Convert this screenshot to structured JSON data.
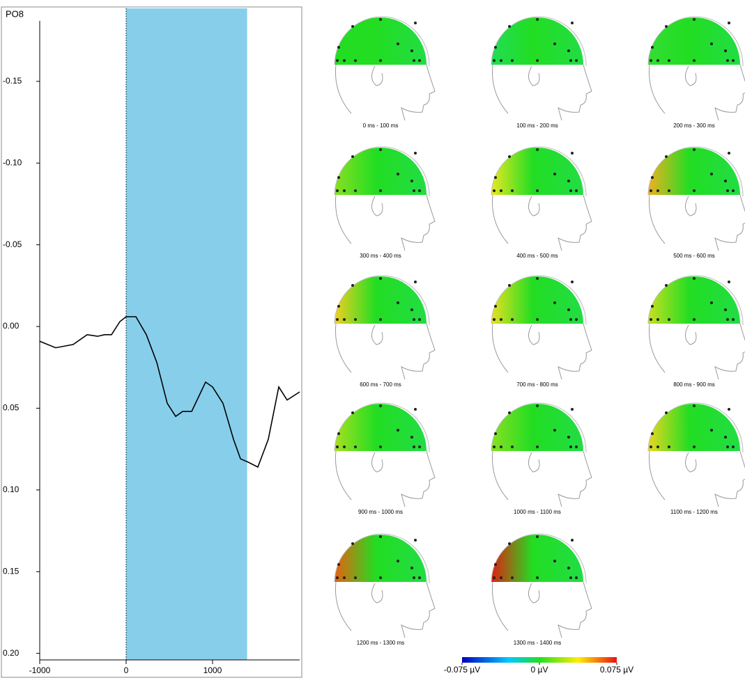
{
  "chart_data": {
    "type": "line",
    "title": "PO8",
    "x": [
      -1000,
      -815,
      -613,
      -452,
      -331,
      -250,
      -169,
      -73,
      0,
      113,
      234,
      355,
      476,
      573,
      653,
      758,
      839,
      919,
      1000,
      1121,
      1242,
      1323,
      1411,
      1524,
      1645,
      1766,
      1863,
      2008
    ],
    "values": [
      0.009,
      0.013,
      0.011,
      0.005,
      0.006,
      0.005,
      0.005,
      -0.003,
      -0.006,
      -0.006,
      0.005,
      0.022,
      0.047,
      0.055,
      0.052,
      0.052,
      0.043,
      0.034,
      0.037,
      0.047,
      0.069,
      0.081,
      0.083,
      0.086,
      0.069,
      0.037,
      0.045,
      0.04
    ],
    "color": "#000000",
    "xlim": [
      -1000,
      2008
    ],
    "xticks": [
      -1000,
      0,
      1000
    ],
    "ylim": [
      -0.187,
      0.204
    ],
    "invert_y": true,
    "yticks": [
      {
        "value": -0.15,
        "label": "-0.15"
      },
      {
        "value": -0.1,
        "label": "-0.10"
      },
      {
        "value": -0.05,
        "label": "-0.05"
      },
      {
        "value": 0,
        "label": "0.00"
      },
      {
        "value": 0.05,
        "label": "0.05"
      },
      {
        "value": 0.1,
        "label": "0.10"
      },
      {
        "value": 0.15,
        "label": "0.15"
      },
      {
        "value": 0.2,
        "label": "0.20"
      }
    ],
    "highlight": [
      0,
      1400
    ],
    "highlight_color": "#87ceeb"
  },
  "topomaps": {
    "maps": [
      {
        "label": "0 ms - 100 ms",
        "color": "#22dd22"
      },
      {
        "label": "100 ms - 200 ms",
        "color": "#22dd55"
      },
      {
        "label": "200 ms - 300 ms",
        "color": "#33dd33"
      },
      {
        "label": "300 ms - 400 ms",
        "color": "#88e022"
      },
      {
        "label": "400 ms - 500 ms",
        "color": "#e8e822"
      },
      {
        "label": "500 ms - 600 ms",
        "color": "#f0b020"
      },
      {
        "label": "600 ms - 700 ms",
        "color": "#f0d020"
      },
      {
        "label": "700 ms - 800 ms",
        "color": "#e8e020"
      },
      {
        "label": "800 ms - 900 ms",
        "color": "#c8e020"
      },
      {
        "label": "900 ms - 1000 ms",
        "color": "#a8e020"
      },
      {
        "label": "1000 ms - 1100 ms",
        "color": "#88e022"
      },
      {
        "label": "1100 ms - 1200 ms",
        "color": "#e8d820"
      },
      {
        "label": "1200 ms - 1300 ms",
        "color": "#e86010"
      },
      {
        "label": "1300 ms - 1400 ms",
        "color": "#e02010"
      }
    ],
    "colorbar": {
      "lim": [
        -0.075,
        0.075
      ],
      "ticks": [
        {
          "value": -0.075,
          "label": "-0.075 µV"
        },
        {
          "value": 0,
          "label": "0 µV"
        },
        {
          "value": 0.075,
          "label": "0.075 µV"
        }
      ]
    }
  }
}
